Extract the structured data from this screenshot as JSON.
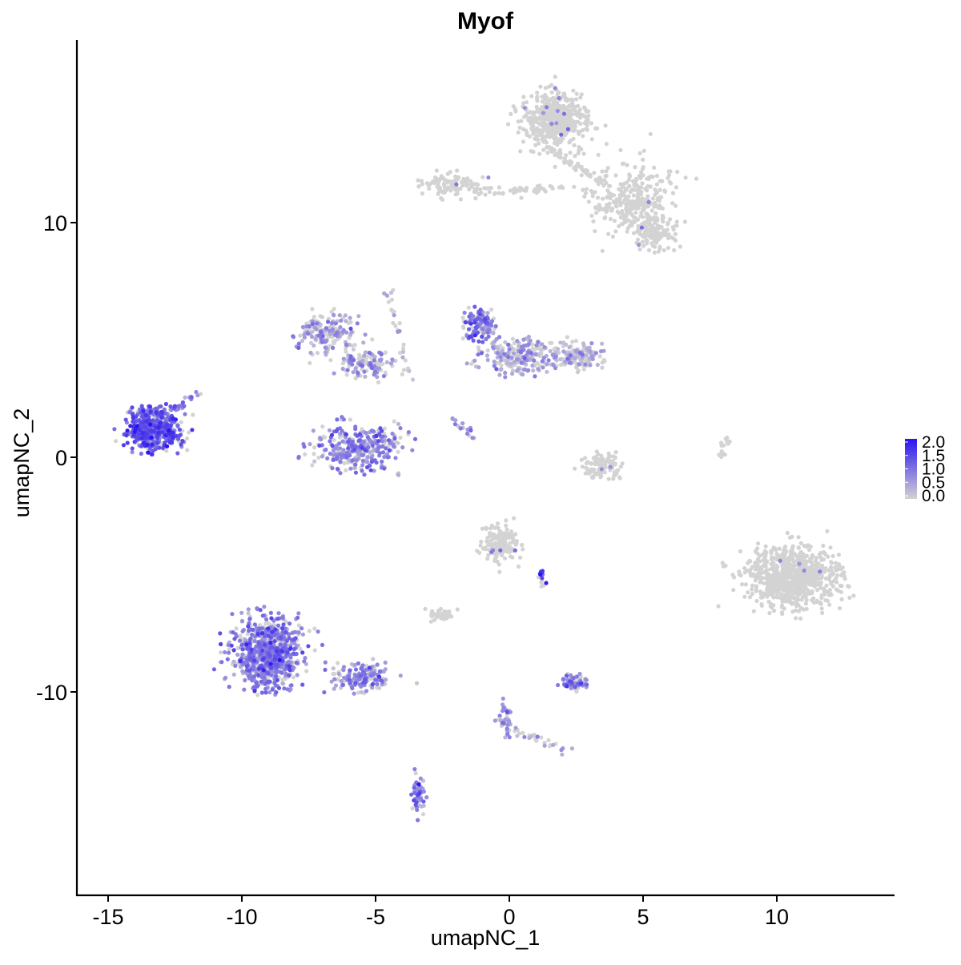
{
  "chart_data": {
    "type": "scatter",
    "title": "Myof",
    "xlabel": "umapNC_1",
    "ylabel": "umapNC_2",
    "xlim": [
      -16.4,
      14.5
    ],
    "ylim": [
      -18.6,
      18.1
    ],
    "x_ticks": [
      -15,
      -10,
      -5,
      0,
      5,
      10
    ],
    "x_tick_labels": [
      "-15",
      "-10",
      "-5",
      "0",
      "5",
      "10"
    ],
    "y_ticks": [
      -10,
      0,
      10
    ],
    "y_tick_labels": [
      "-10",
      "0",
      "10"
    ],
    "grid": false,
    "legend": {
      "placement": "right",
      "type": "colorbar",
      "min": 0,
      "max": 2,
      "labels": [
        "2.0",
        "1.5",
        "1.0",
        "0.5",
        "0.0"
      ],
      "low_color": "#d3d3d3",
      "high_color": "#2a13f0"
    },
    "value_name": "Myof expression",
    "clusters": [
      {
        "name": "top-right-dense",
        "cx": 1.7,
        "cy": 14.4,
        "sx": 1.0,
        "sy": 1.0,
        "n": 520,
        "expr": 0.02
      },
      {
        "name": "top-right-arm",
        "cx": 4.6,
        "cy": 11.0,
        "sx": 1.4,
        "sy": 1.3,
        "n": 300,
        "expr": 0.02
      },
      {
        "name": "top-right-lobe",
        "cx": 5.4,
        "cy": 9.6,
        "sx": 0.7,
        "sy": 0.6,
        "n": 130,
        "expr": 0.02
      },
      {
        "name": "top-left-arm",
        "cx": -2.2,
        "cy": 11.6,
        "sx": 1.1,
        "sy": 0.45,
        "n": 110,
        "expr": 0.02
      },
      {
        "name": "mid-arm-left",
        "cx": -6.8,
        "cy": 5.3,
        "sx": 0.9,
        "sy": 0.7,
        "n": 170,
        "expr": 0.45
      },
      {
        "name": "mid-arm-center",
        "cx": -5.2,
        "cy": 4.0,
        "sx": 0.8,
        "sy": 0.5,
        "n": 110,
        "expr": 0.55
      },
      {
        "name": "mid-cup",
        "cx": -5.6,
        "cy": 0.4,
        "sx": 1.4,
        "sy": 0.8,
        "n": 330,
        "expr": 0.75
      },
      {
        "name": "mid-right-head",
        "cx": -1.1,
        "cy": 5.6,
        "sx": 0.5,
        "sy": 0.6,
        "n": 120,
        "expr": 0.9
      },
      {
        "name": "mid-right-body",
        "cx": 0.4,
        "cy": 4.3,
        "sx": 1.3,
        "sy": 0.6,
        "n": 230,
        "expr": 0.4
      },
      {
        "name": "mid-right-tail",
        "cx": 2.6,
        "cy": 4.3,
        "sx": 0.8,
        "sy": 0.5,
        "n": 140,
        "expr": 0.15
      },
      {
        "name": "left-dense",
        "cx": -13.3,
        "cy": 1.2,
        "sx": 0.85,
        "sy": 0.75,
        "n": 520,
        "expr": 1.2
      },
      {
        "name": "small-arc",
        "cx": 3.5,
        "cy": -0.4,
        "sx": 0.6,
        "sy": 0.5,
        "n": 110,
        "expr": 0.05
      },
      {
        "name": "right-large",
        "cx": 10.6,
        "cy": -5.1,
        "sx": 1.35,
        "sy": 1.1,
        "n": 820,
        "expr": 0.03
      },
      {
        "name": "center-lower",
        "cx": -0.3,
        "cy": -3.7,
        "sx": 0.55,
        "sy": 0.6,
        "n": 170,
        "expr": 0.05
      },
      {
        "name": "bottom-left-big",
        "cx": -9.0,
        "cy": -8.3,
        "sx": 1.0,
        "sy": 1.2,
        "n": 780,
        "expr": 0.85
      },
      {
        "name": "bottom-left-tail",
        "cx": -5.6,
        "cy": -9.4,
        "sx": 0.9,
        "sy": 0.45,
        "n": 160,
        "expr": 0.7
      },
      {
        "name": "small-left-lower",
        "cx": -2.6,
        "cy": -6.7,
        "sx": 0.4,
        "sy": 0.25,
        "n": 45,
        "expr": 0.05
      },
      {
        "name": "small-lower-right",
        "cx": 2.4,
        "cy": -9.6,
        "sx": 0.5,
        "sy": 0.25,
        "n": 75,
        "expr": 0.8
      },
      {
        "name": "bottom-stem",
        "cx": -3.4,
        "cy": -14.4,
        "sx": 0.2,
        "sy": 0.7,
        "n": 55,
        "expr": 0.8
      },
      {
        "name": "lower-stem",
        "cx": -0.1,
        "cy": -11.3,
        "sx": 0.25,
        "sy": 0.75,
        "n": 45,
        "expr": 0.6
      }
    ],
    "streaks": [
      {
        "name": "top-connector",
        "from": [
          -1.0,
          11.3
        ],
        "to": [
          2.0,
          11.5
        ],
        "n": 45,
        "expr": 0.02
      },
      {
        "name": "top-neck",
        "from": [
          1.4,
          13.2
        ],
        "to": [
          3.8,
          11.5
        ],
        "n": 60,
        "expr": 0.02
      },
      {
        "name": "mid-left-streak",
        "from": [
          -4.6,
          7.3
        ],
        "to": [
          -3.7,
          3.4
        ],
        "n": 30,
        "expr": 0.1
      },
      {
        "name": "left-dense-arm",
        "from": [
          -12.6,
          2.0
        ],
        "to": [
          -11.5,
          2.8
        ],
        "n": 22,
        "expr": 0.6
      },
      {
        "name": "mid-small-streak",
        "from": [
          -2.1,
          1.6
        ],
        "to": [
          -1.4,
          0.9
        ],
        "n": 16,
        "expr": 0.7
      },
      {
        "name": "thin-right-streak",
        "from": [
          7.9,
          0.0
        ],
        "to": [
          8.2,
          0.9
        ],
        "n": 16,
        "expr": 0.02
      },
      {
        "name": "lower-dark-streak",
        "from": [
          1.1,
          -4.7
        ],
        "to": [
          1.3,
          -5.6
        ],
        "n": 14,
        "expr": 1.6
      },
      {
        "name": "lower-branch",
        "from": [
          0.1,
          -11.6
        ],
        "to": [
          2.4,
          -12.6
        ],
        "n": 28,
        "expr": 0.3
      }
    ]
  }
}
